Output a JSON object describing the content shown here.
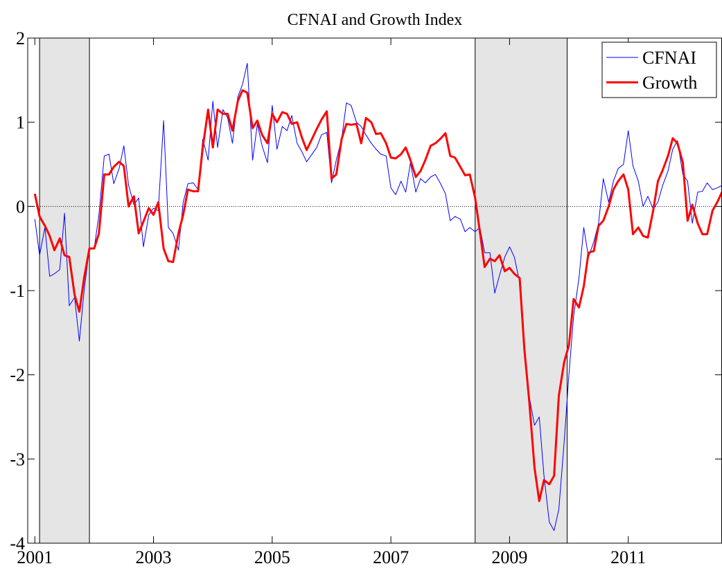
{
  "chart_data": {
    "type": "line",
    "title": "CFNAI and Growth Index",
    "x": [
      2001,
      2001.08,
      2001.17,
      2001.25,
      2001.33,
      2001.42,
      2001.5,
      2001.58,
      2001.67,
      2001.75,
      2001.83,
      2001.92,
      2002,
      2002.08,
      2002.17,
      2002.25,
      2002.33,
      2002.42,
      2002.5,
      2002.58,
      2002.67,
      2002.75,
      2002.83,
      2002.92,
      2003,
      2003.08,
      2003.17,
      2003.25,
      2003.33,
      2003.42,
      2003.5,
      2003.58,
      2003.67,
      2003.75,
      2003.83,
      2003.92,
      2004,
      2004.08,
      2004.17,
      2004.25,
      2004.33,
      2004.42,
      2004.5,
      2004.58,
      2004.67,
      2004.75,
      2004.83,
      2004.92,
      2005,
      2005.08,
      2005.17,
      2005.25,
      2005.33,
      2005.42,
      2005.5,
      2005.58,
      2005.67,
      2005.75,
      2005.83,
      2005.92,
      2006,
      2006.08,
      2006.17,
      2006.25,
      2006.33,
      2006.42,
      2006.5,
      2006.58,
      2006.67,
      2006.75,
      2006.83,
      2006.92,
      2007,
      2007.08,
      2007.17,
      2007.25,
      2007.33,
      2007.42,
      2007.5,
      2007.58,
      2007.67,
      2007.75,
      2007.83,
      2007.92,
      2008,
      2008.08,
      2008.17,
      2008.25,
      2008.33,
      2008.42,
      2008.5,
      2008.58,
      2008.67,
      2008.75,
      2008.83,
      2008.92,
      2009,
      2009.08,
      2009.17,
      2009.25,
      2009.33,
      2009.42,
      2009.5,
      2009.58,
      2009.67,
      2009.75,
      2009.83,
      2009.92,
      2010,
      2010.08,
      2010.17,
      2010.25,
      2010.33,
      2010.42,
      2010.5,
      2010.58,
      2010.67,
      2010.75,
      2010.83,
      2010.92,
      2011,
      2011.08,
      2011.17,
      2011.25,
      2011.33,
      2011.42,
      2011.5,
      2011.58,
      2011.67,
      2011.75,
      2011.83,
      2011.92,
      2012,
      2012.08,
      2012.17,
      2012.25,
      2012.33,
      2012.42,
      2012.5,
      2012.58
    ],
    "series": [
      {
        "name": "CFNAI",
        "color": "#0000ff",
        "width": 1,
        "values": [
          -0.15,
          -0.58,
          -0.25,
          -0.83,
          -0.8,
          -0.75,
          -0.08,
          -1.18,
          -1.08,
          -1.6,
          -1.0,
          -0.5,
          -0.5,
          -0.1,
          0.6,
          0.62,
          0.27,
          0.45,
          0.72,
          0.25,
          0.02,
          0.1,
          -0.48,
          -0.1,
          -0.02,
          -0.05,
          1.02,
          -0.25,
          -0.32,
          -0.52,
          0.05,
          0.27,
          0.28,
          0.2,
          0.8,
          0.55,
          1.25,
          0.7,
          1.15,
          1.05,
          0.75,
          1.3,
          1.45,
          1.7,
          0.55,
          0.98,
          0.72,
          0.52,
          1.2,
          0.68,
          0.95,
          0.9,
          1.08,
          0.75,
          0.65,
          0.53,
          0.62,
          0.7,
          0.85,
          0.88,
          0.28,
          0.55,
          0.8,
          1.23,
          1.2,
          1.0,
          0.95,
          0.85,
          0.75,
          0.68,
          0.62,
          0.6,
          0.22,
          0.14,
          0.3,
          0.17,
          0.52,
          0.17,
          0.33,
          0.28,
          0.35,
          0.38,
          0.28,
          0.15,
          -0.17,
          -0.12,
          -0.15,
          -0.3,
          -0.25,
          -0.3,
          -0.25,
          -0.55,
          -0.55,
          -1.03,
          -0.82,
          -0.6,
          -0.48,
          -0.6,
          -0.9,
          -1.75,
          -2.25,
          -2.6,
          -2.5,
          -3.2,
          -3.75,
          -3.85,
          -3.6,
          -2.8,
          -2.0,
          -1.3,
          -0.85,
          -0.25,
          -0.6,
          -0.42,
          -0.2,
          0.33,
          0.05,
          0.3,
          0.45,
          0.5,
          0.9,
          0.48,
          0.3,
          0.0,
          0.12,
          -0.03,
          0.05,
          0.25,
          0.42,
          0.68,
          0.78,
          0.38,
          0.3,
          -0.2,
          0.17,
          0.18,
          0.28,
          0.2,
          0.22,
          0.25
        ]
      },
      {
        "name": "Growth",
        "color": "#ff0000",
        "width": 3,
        "values": [
          0.15,
          -0.12,
          -0.23,
          -0.35,
          -0.52,
          -0.38,
          -0.58,
          -0.6,
          -1.05,
          -1.25,
          -0.85,
          -0.5,
          -0.5,
          -0.32,
          0.38,
          0.38,
          0.47,
          0.53,
          0.48,
          0.0,
          0.12,
          -0.32,
          -0.18,
          -0.02,
          -0.1,
          0.05,
          -0.5,
          -0.65,
          -0.66,
          -0.32,
          -0.1,
          0.2,
          0.18,
          0.18,
          0.7,
          1.15,
          0.7,
          1.15,
          1.1,
          1.1,
          0.9,
          1.25,
          1.38,
          1.35,
          0.93,
          1.02,
          0.85,
          0.75,
          1.1,
          1.0,
          1.12,
          1.1,
          0.98,
          1.0,
          0.82,
          0.67,
          0.8,
          0.92,
          1.03,
          1.13,
          0.33,
          0.38,
          0.8,
          0.98,
          0.97,
          0.98,
          0.75,
          1.05,
          1.0,
          0.86,
          0.87,
          0.75,
          0.58,
          0.57,
          0.62,
          0.7,
          0.55,
          0.35,
          0.42,
          0.55,
          0.72,
          0.75,
          0.8,
          0.87,
          0.6,
          0.58,
          0.47,
          0.37,
          0.38,
          0.1,
          -0.3,
          -0.72,
          -0.62,
          -0.65,
          -0.58,
          -0.77,
          -0.73,
          -0.8,
          -0.85,
          -1.7,
          -2.3,
          -3.1,
          -3.5,
          -3.25,
          -3.3,
          -3.2,
          -2.25,
          -1.85,
          -1.65,
          -1.1,
          -1.2,
          -0.95,
          -0.55,
          -0.53,
          -0.23,
          -0.17,
          0.0,
          0.2,
          0.3,
          0.38,
          0.2,
          -0.33,
          -0.25,
          -0.35,
          -0.37,
          -0.05,
          0.3,
          0.43,
          0.6,
          0.81,
          0.75,
          0.52,
          -0.17,
          0.02,
          -0.2,
          -0.33,
          -0.33,
          -0.05,
          0.05,
          0.17
        ]
      }
    ],
    "shaded_periods": [
      [
        2001.08,
        2001.92
      ],
      [
        2008.42,
        2009.97
      ]
    ],
    "shade_color": "#e5e5e5",
    "xlim": [
      2000.88,
      2012.58
    ],
    "xticks": [
      2001,
      2003,
      2005,
      2007,
      2009,
      2011
    ],
    "ylim": [
      -4,
      2
    ],
    "yticks": [
      -4,
      -3,
      -2,
      -1,
      0,
      1,
      2
    ],
    "zero_line": true,
    "legend": "upper right"
  }
}
